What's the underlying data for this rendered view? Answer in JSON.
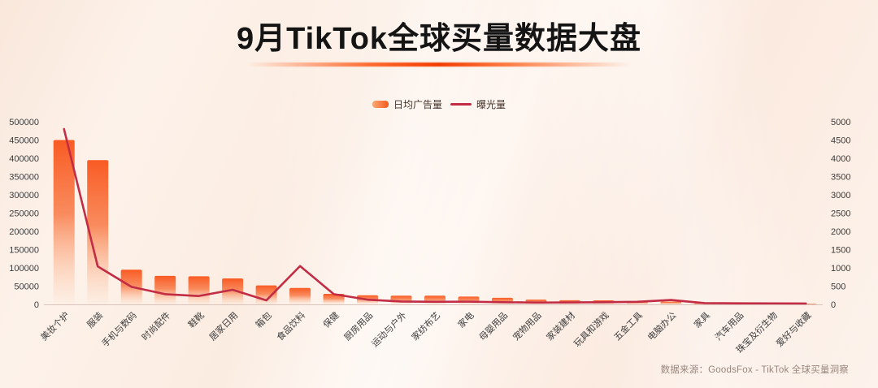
{
  "page": {
    "title": "9月TikTok全球买量数据大盘",
    "source": "数据来源：GoodsFox - TikTok 全球买量洞察"
  },
  "legend": {
    "bar_label": "日均广告量",
    "line_label": "曝光量"
  },
  "colors": {
    "bar_top": "#f9561d",
    "bar_mid": "#f8713a",
    "bar_fade": "#ffbe93",
    "line": "#c22c44",
    "axis_text": "#3c3c3c",
    "axis_line": "#d8c4ba",
    "background": "#fcefe7",
    "underline": "#f23c00"
  },
  "chart_data": {
    "type": "bar",
    "title": "9月TikTok全球买量数据大盘",
    "xlabel": "",
    "ylabel_left": "日均广告量",
    "ylabel_right": "曝光量",
    "grid": false,
    "legend_position": "top-center",
    "categories": [
      "美妆个护",
      "服装",
      "手机与数码",
      "时尚配件",
      "鞋靴",
      "居家日用",
      "箱包",
      "食品饮料",
      "保健",
      "厨房用品",
      "运动与户外",
      "家纺布艺",
      "家电",
      "母婴用品",
      "宠物用品",
      "家装建材",
      "玩具和游戏",
      "五金工具",
      "电脑办公",
      "家具",
      "汽车用品",
      "珠宝及衍生物",
      "爱好与收藏"
    ],
    "series": [
      {
        "name": "日均广告量",
        "type": "bar",
        "axis": "left",
        "values": [
          450000,
          395000,
          95000,
          78000,
          77000,
          71000,
          52000,
          45000,
          29000,
          25000,
          24000,
          24000,
          21500,
          18000,
          13000,
          11500,
          11000,
          9000,
          7500,
          3000,
          2000,
          1500,
          1200
        ]
      },
      {
        "name": "曝光量",
        "type": "line",
        "axis": "right",
        "values": [
          4800,
          1040,
          480,
          280,
          230,
          400,
          110,
          1050,
          280,
          130,
          80,
          70,
          75,
          60,
          50,
          55,
          60,
          70,
          120,
          35,
          30,
          28,
          25
        ]
      }
    ],
    "left_axis": {
      "min": 0,
      "max": 500000,
      "step": 50000,
      "ticks": [
        0,
        50000,
        100000,
        150000,
        200000,
        250000,
        300000,
        350000,
        400000,
        450000,
        500000
      ]
    },
    "right_axis": {
      "min": 0,
      "max": 5000,
      "step": 500,
      "ticks": [
        0,
        500,
        1000,
        1500,
        2000,
        2500,
        3000,
        3500,
        4000,
        4500,
        5000
      ]
    }
  }
}
